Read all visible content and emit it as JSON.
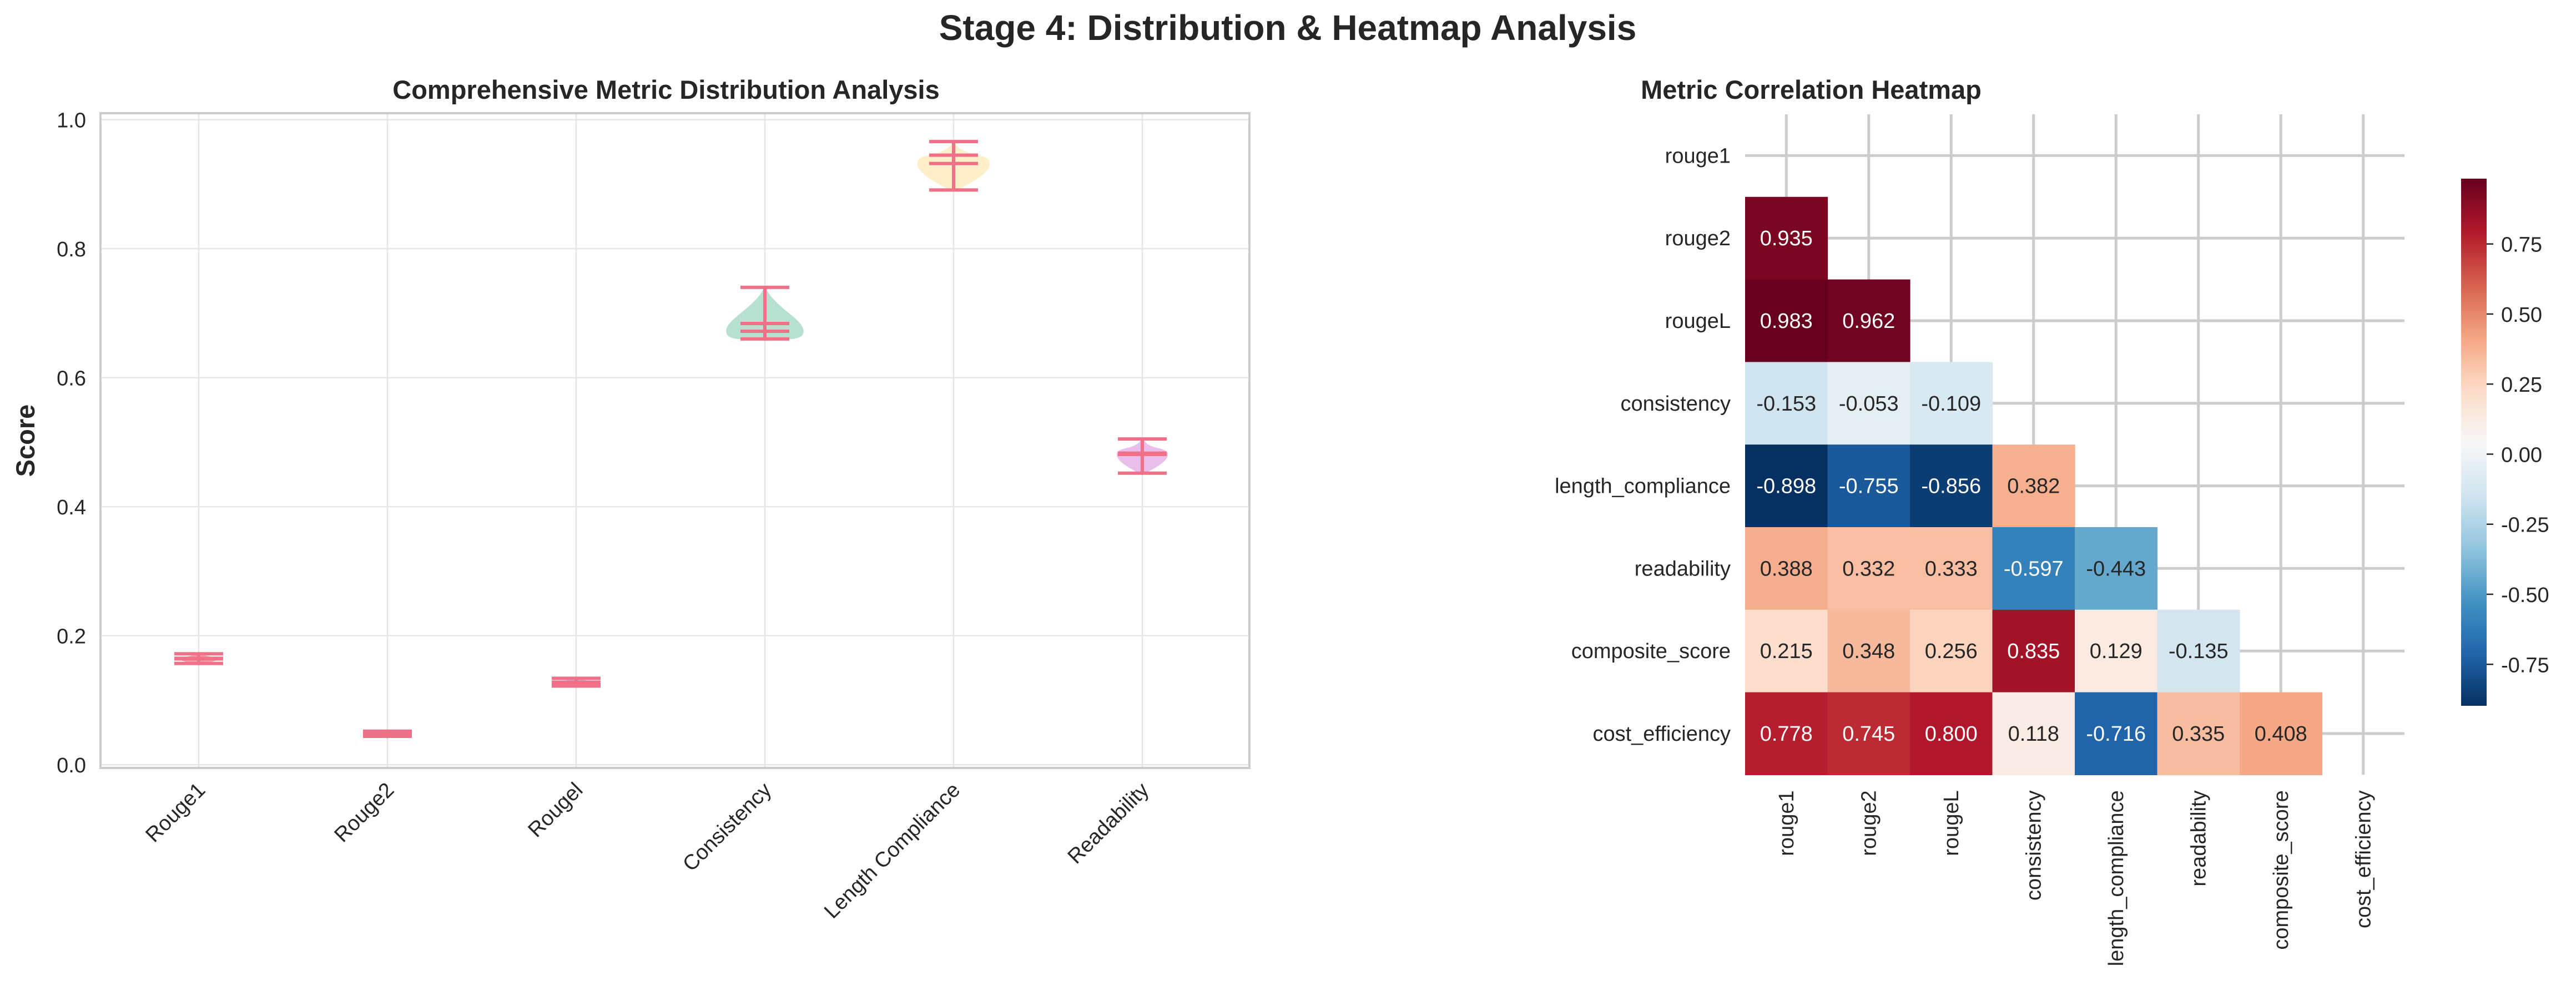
{
  "figure": {
    "title": "Stage 4: Distribution & Heatmap Analysis"
  },
  "chart_data": [
    {
      "type": "violin",
      "title": "Comprehensive Metric Distribution Analysis",
      "xlabel": "",
      "ylabel": "Score",
      "ylim": [
        0.0,
        1.0
      ],
      "yticks": [
        "0.0",
        "0.2",
        "0.4",
        "0.6",
        "0.8",
        "1.0"
      ],
      "grid": true,
      "categories": [
        "Rouge1",
        "Rouge2",
        "Rougel",
        "Consistency",
        "Length Compliance",
        "Readability"
      ],
      "colors": [
        "#f47f8e",
        "#7fcad8",
        "#7fcad8",
        "#9ed5bf",
        "#fde9b8",
        "#e3a8e3"
      ],
      "stats_color": "#f07087",
      "distributions": [
        {
          "name": "Rouge1",
          "min": 0.157,
          "max": 0.172,
          "mean": 0.165,
          "median": 0.164
        },
        {
          "name": "Rouge2",
          "min": 0.044,
          "max": 0.052,
          "mean": 0.048,
          "median": 0.048
        },
        {
          "name": "Rougel",
          "min": 0.122,
          "max": 0.134,
          "mean": 0.128,
          "median": 0.127
        },
        {
          "name": "Consistency",
          "min": 0.66,
          "max": 0.74,
          "mean": 0.684,
          "median": 0.672
        },
        {
          "name": "Length Compliance",
          "min": 0.891,
          "max": 0.966,
          "mean": 0.945,
          "median": 0.932
        },
        {
          "name": "Readability",
          "min": 0.452,
          "max": 0.505,
          "mean": 0.483,
          "median": 0.481
        }
      ]
    },
    {
      "type": "heatmap",
      "title": "Metric Correlation Heatmap",
      "rows": [
        "rouge1",
        "rouge2",
        "rougeL",
        "consistency",
        "length_compliance",
        "readability",
        "composite_score",
        "cost_efficiency"
      ],
      "cols": [
        "rouge1",
        "rouge2",
        "rougeL",
        "consistency",
        "length_compliance",
        "readability",
        "composite_score",
        "cost_efficiency"
      ],
      "mask": "upper-triangle incl. diagonal",
      "values": [
        [
          null,
          null,
          null,
          null,
          null,
          null,
          null,
          null
        ],
        [
          0.935,
          null,
          null,
          null,
          null,
          null,
          null,
          null
        ],
        [
          0.983,
          0.962,
          null,
          null,
          null,
          null,
          null,
          null
        ],
        [
          -0.153,
          -0.053,
          -0.109,
          null,
          null,
          null,
          null,
          null
        ],
        [
          -0.898,
          -0.755,
          -0.856,
          0.382,
          null,
          null,
          null,
          null
        ],
        [
          0.388,
          0.332,
          0.333,
          -0.597,
          -0.443,
          null,
          null,
          null
        ],
        [
          0.215,
          0.348,
          0.256,
          0.835,
          0.129,
          -0.135,
          null,
          null
        ],
        [
          0.778,
          0.745,
          0.8,
          0.118,
          -0.716,
          0.335,
          0.408,
          null
        ]
      ],
      "colormap": "RdBu_r",
      "vmin": -0.898,
      "vmax": 0.983,
      "colorbar_ticks": [
        "0.75",
        "0.50",
        "0.25",
        "0.00",
        "-0.25",
        "-0.50",
        "-0.75"
      ],
      "colorbar_tick_values": [
        0.75,
        0.5,
        0.25,
        0.0,
        -0.25,
        -0.5,
        -0.75
      ]
    }
  ]
}
